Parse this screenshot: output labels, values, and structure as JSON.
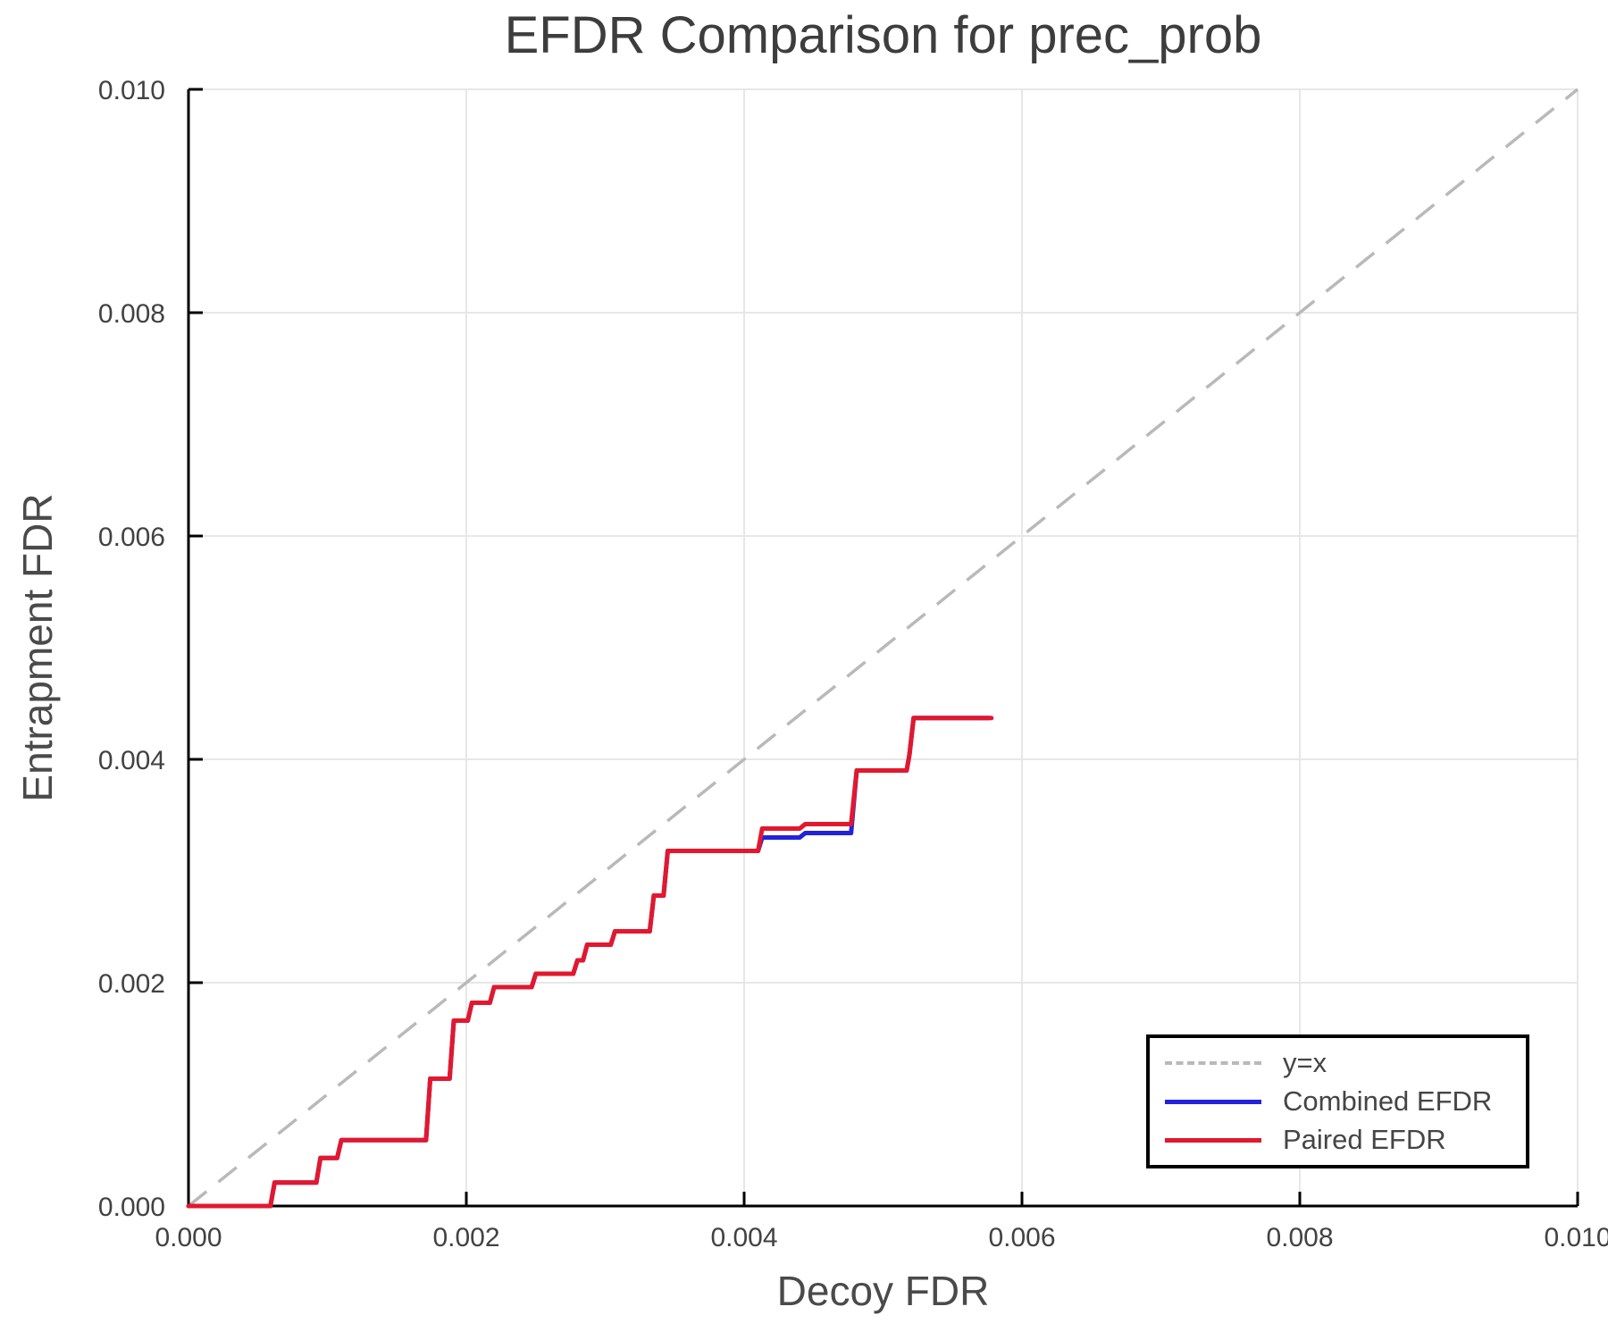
{
  "chart_data": {
    "type": "line",
    "title": "EFDR Comparison for prec_prob",
    "xlabel": "Decoy FDR",
    "ylabel": "Entrapment FDR",
    "xlim": [
      0.0,
      0.01
    ],
    "ylim": [
      0.0,
      0.01
    ],
    "grid": true,
    "legend_position": "bottom-right",
    "x_ticks": [
      0.0,
      0.002,
      0.004,
      0.006,
      0.008,
      0.01
    ],
    "y_ticks": [
      0.0,
      0.002,
      0.004,
      0.006,
      0.008,
      0.01
    ],
    "x_tick_labels": [
      "0.000",
      "0.002",
      "0.004",
      "0.006",
      "0.008",
      "0.010"
    ],
    "y_tick_labels": [
      "0.000",
      "0.002",
      "0.004",
      "0.006",
      "0.008",
      "0.010"
    ],
    "reference_line": {
      "label": "y=x",
      "from": [
        0.0,
        0.0
      ],
      "to": [
        0.01,
        0.01
      ],
      "style": "dashed",
      "color": "#b9b9b9"
    },
    "series": [
      {
        "name": "Combined EFDR",
        "color": "#2222dd",
        "points": [
          [
            0.0,
            0.0
          ],
          [
            0.00059,
            0.0
          ],
          [
            0.00062,
            0.00021
          ],
          [
            0.00092,
            0.00021
          ],
          [
            0.00095,
            0.00043
          ],
          [
            0.00107,
            0.00043
          ],
          [
            0.0011,
            0.00059
          ],
          [
            0.00171,
            0.00059
          ],
          [
            0.00174,
            0.00114
          ],
          [
            0.00188,
            0.00114
          ],
          [
            0.00191,
            0.00166
          ],
          [
            0.00201,
            0.00166
          ],
          [
            0.00204,
            0.00182
          ],
          [
            0.00217,
            0.00182
          ],
          [
            0.0022,
            0.00196
          ],
          [
            0.00247,
            0.00196
          ],
          [
            0.0025,
            0.00208
          ],
          [
            0.00277,
            0.00208
          ],
          [
            0.0028,
            0.0022
          ],
          [
            0.00284,
            0.0022
          ],
          [
            0.00287,
            0.00234
          ],
          [
            0.00304,
            0.00234
          ],
          [
            0.00307,
            0.00246
          ],
          [
            0.00332,
            0.00246
          ],
          [
            0.00335,
            0.00278
          ],
          [
            0.00342,
            0.00278
          ],
          [
            0.00345,
            0.00318
          ],
          [
            0.0041,
            0.00318
          ],
          [
            0.00413,
            0.0033
          ],
          [
            0.0044,
            0.0033
          ],
          [
            0.00444,
            0.00334
          ],
          [
            0.00477,
            0.00334
          ],
          [
            0.00481,
            0.0039
          ],
          [
            0.00517,
            0.0039
          ],
          [
            0.00519,
            0.00404
          ],
          [
            0.00522,
            0.00437
          ],
          [
            0.00576,
            0.00437
          ]
        ]
      },
      {
        "name": "Paired EFDR",
        "color": "#e2182e",
        "points": [
          [
            0.0,
            0.0
          ],
          [
            0.00059,
            0.0
          ],
          [
            0.00062,
            0.00021
          ],
          [
            0.00092,
            0.00021
          ],
          [
            0.00095,
            0.00043
          ],
          [
            0.00107,
            0.00043
          ],
          [
            0.0011,
            0.00059
          ],
          [
            0.00171,
            0.00059
          ],
          [
            0.00174,
            0.00114
          ],
          [
            0.00188,
            0.00114
          ],
          [
            0.00191,
            0.00166
          ],
          [
            0.00201,
            0.00166
          ],
          [
            0.00204,
            0.00182
          ],
          [
            0.00217,
            0.00182
          ],
          [
            0.0022,
            0.00196
          ],
          [
            0.00247,
            0.00196
          ],
          [
            0.0025,
            0.00208
          ],
          [
            0.00277,
            0.00208
          ],
          [
            0.0028,
            0.0022
          ],
          [
            0.00284,
            0.0022
          ],
          [
            0.00287,
            0.00234
          ],
          [
            0.00304,
            0.00234
          ],
          [
            0.00307,
            0.00246
          ],
          [
            0.00332,
            0.00246
          ],
          [
            0.00335,
            0.00278
          ],
          [
            0.00342,
            0.00278
          ],
          [
            0.00345,
            0.00318
          ],
          [
            0.0041,
            0.00318
          ],
          [
            0.00413,
            0.00338
          ],
          [
            0.0044,
            0.00338
          ],
          [
            0.00444,
            0.00342
          ],
          [
            0.00477,
            0.00342
          ],
          [
            0.00481,
            0.0039
          ],
          [
            0.00517,
            0.0039
          ],
          [
            0.00519,
            0.00404
          ],
          [
            0.00522,
            0.00437
          ],
          [
            0.00578,
            0.00437
          ]
        ]
      }
    ],
    "legend": [
      {
        "label": "y=x",
        "color": "#b9b9b9",
        "style": "dashed"
      },
      {
        "label": "Combined EFDR",
        "color": "#2222dd",
        "style": "solid"
      },
      {
        "label": "Paired EFDR",
        "color": "#e2182e",
        "style": "solid"
      }
    ],
    "colors": {
      "grid": "#e7e7e7",
      "spine": "#000000",
      "tick_text": "#424242",
      "title_text": "#3d3d3d",
      "axis_label_text": "#4a4a4a"
    }
  }
}
